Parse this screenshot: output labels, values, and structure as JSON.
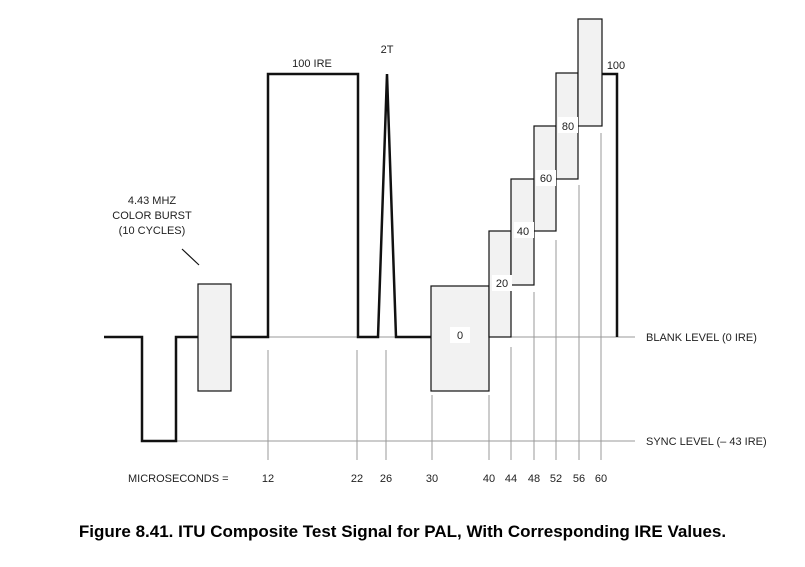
{
  "labels": {
    "burst_line1": "4.43 MHZ",
    "burst_line2": "COLOR BURST",
    "burst_line3": "(10 CYCLES)",
    "ire100": "100 IRE",
    "two_t": "2T",
    "step_100": "100",
    "step_80": "80",
    "step_60": "60",
    "step_40": "40",
    "step_20": "20",
    "step_0": "0",
    "blank_level": "BLANK LEVEL (0 IRE)",
    "sync_level": "SYNC LEVEL (– 43 IRE)",
    "microseconds": "MICROSECONDS ="
  },
  "ticks": [
    "12",
    "22",
    "26",
    "30",
    "40",
    "44",
    "48",
    "52",
    "56",
    "60"
  ],
  "caption": "Figure 8.41. ITU Composite Test Signal for PAL, With Corresponding IRE Values."
}
